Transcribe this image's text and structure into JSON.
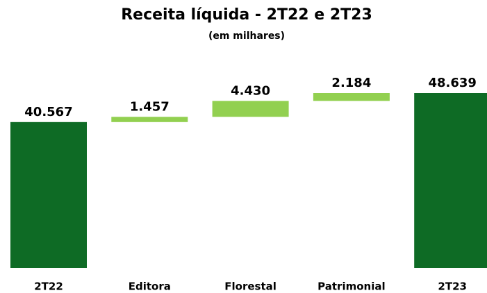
{
  "chart_data": {
    "type": "waterfall",
    "title": "Receita líquida - 2T22 e 2T23",
    "subtitle": "(em milhares)",
    "categories": [
      "2T22",
      "Editora",
      "Florestal",
      "Patrimonial",
      "2T23"
    ],
    "values": [
      40567,
      1457,
      4430,
      2184,
      48639
    ],
    "value_labels": [
      "40.567",
      "1.457",
      "4.430",
      "2.184",
      "48.639"
    ],
    "measure": [
      "absolute",
      "relative",
      "relative",
      "relative",
      "total"
    ],
    "colors": [
      "#0e6b25",
      "#92d050",
      "#92d050",
      "#92d050",
      "#0e6b25"
    ]
  }
}
